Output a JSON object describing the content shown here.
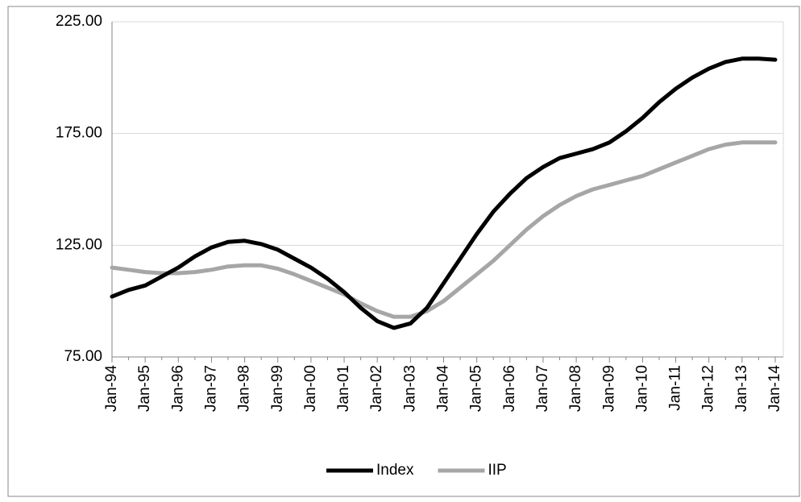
{
  "chart_data": {
    "type": "line",
    "categories": [
      "Jan-94",
      null,
      "Jan-95",
      null,
      "Jan-96",
      null,
      "Jan-97",
      null,
      "Jan-98",
      null,
      "Jan-99",
      null,
      "Jan-00",
      null,
      "Jan-01",
      null,
      "Jan-02",
      null,
      "Jan-03",
      null,
      "Jan-04",
      null,
      "Jan-05",
      null,
      "Jan-06",
      null,
      "Jan-07",
      null,
      "Jan-08",
      null,
      "Jan-09",
      null,
      "Jan-10",
      null,
      "Jan-11",
      null,
      "Jan-12",
      null,
      "Jan-13",
      null,
      "Jan-14"
    ],
    "series": [
      {
        "name": "Index",
        "color": "#000000",
        "values": [
          102,
          105,
          107,
          111,
          115,
          120,
          124,
          126.5,
          127,
          125.5,
          123,
          119,
          115,
          110,
          104,
          97,
          91,
          88,
          90,
          97,
          108,
          119,
          130,
          140,
          148,
          155,
          160,
          164,
          166,
          168,
          171,
          176,
          182,
          189,
          195,
          200,
          204,
          207,
          208.5,
          208.5,
          208
        ]
      },
      {
        "name": "IIP",
        "color": "#a6a6a6",
        "values": [
          115,
          114,
          113,
          112.5,
          112.5,
          113,
          114,
          115.5,
          116,
          116,
          114.5,
          112,
          109,
          106,
          103,
          99,
          95.5,
          93,
          93,
          95.5,
          100,
          106,
          112,
          118,
          125,
          132,
          138,
          143,
          147,
          150,
          152,
          154,
          156,
          159,
          162,
          165,
          168,
          170,
          171,
          171,
          171
        ]
      }
    ],
    "ylim": [
      75,
      225
    ],
    "yticks": [
      {
        "value": 75,
        "label": "75.00"
      },
      {
        "value": 125,
        "label": "125.00"
      },
      {
        "value": 175,
        "label": "175.00"
      },
      {
        "value": 225,
        "label": "225.00"
      }
    ],
    "grid": true,
    "legend": "bottom"
  }
}
